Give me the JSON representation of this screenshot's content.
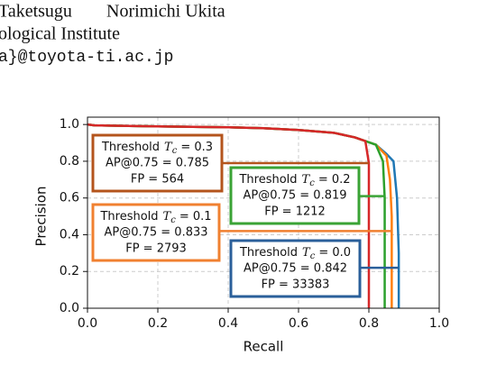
{
  "header": {
    "authors": [
      "Taketsugu",
      "Norimichi Ukita"
    ],
    "affiliation": "ological Institute",
    "email": "a}@toyota-ti.ac.jp"
  },
  "chart_data": {
    "type": "line",
    "xlabel": "Recall",
    "ylabel": "Precision",
    "xlim": [
      0,
      1
    ],
    "ylim": [
      0,
      1.04
    ],
    "xticks": [
      {
        "value": 0,
        "label": "0.0"
      },
      {
        "value": 0.2,
        "label": "0.2"
      },
      {
        "value": 0.4,
        "label": "0.4"
      },
      {
        "value": 0.6,
        "label": "0.6"
      },
      {
        "value": 0.8,
        "label": "0.8"
      },
      {
        "value": 1,
        "label": "1.0"
      }
    ],
    "yticks": [
      {
        "value": 0,
        "label": "0.0"
      },
      {
        "value": 0.2,
        "label": "0.2"
      },
      {
        "value": 0.4,
        "label": "0.4"
      },
      {
        "value": 0.6,
        "label": "0.6"
      },
      {
        "value": 0.8,
        "label": "0.8"
      },
      {
        "value": 1,
        "label": "1.0"
      }
    ],
    "grid": true,
    "series": [
      {
        "color": "#1f77b4",
        "x": [
          0,
          0.02,
          0.2,
          0.4,
          0.5,
          0.6,
          0.7,
          0.76,
          0.79,
          0.82,
          0.85,
          0.87,
          0.88,
          0.885,
          0.885
        ],
        "values": [
          1.0,
          0.995,
          0.99,
          0.985,
          0.98,
          0.97,
          0.955,
          0.93,
          0.91,
          0.89,
          0.84,
          0.8,
          0.6,
          0.3,
          0
        ]
      },
      {
        "color": "#ff7f0e",
        "x": [
          0,
          0.02,
          0.2,
          0.4,
          0.5,
          0.6,
          0.7,
          0.76,
          0.79,
          0.82,
          0.85,
          0.86,
          0.865,
          0.865
        ],
        "values": [
          1.0,
          0.995,
          0.99,
          0.985,
          0.98,
          0.97,
          0.955,
          0.93,
          0.91,
          0.89,
          0.83,
          0.7,
          0.5,
          0
        ]
      },
      {
        "color": "#2ca02c",
        "x": [
          0,
          0.02,
          0.2,
          0.4,
          0.5,
          0.6,
          0.7,
          0.76,
          0.79,
          0.82,
          0.84,
          0.845,
          0.845
        ],
        "values": [
          1.0,
          0.995,
          0.99,
          0.985,
          0.98,
          0.97,
          0.955,
          0.93,
          0.91,
          0.89,
          0.8,
          0.6,
          0
        ]
      },
      {
        "color": "#d62728",
        "x": [
          0,
          0.02,
          0.2,
          0.4,
          0.5,
          0.6,
          0.7,
          0.76,
          0.79,
          0.8,
          0.8
        ],
        "values": [
          1.0,
          0.995,
          0.99,
          0.985,
          0.98,
          0.97,
          0.955,
          0.93,
          0.91,
          0.79,
          0
        ]
      }
    ],
    "annotation_title": "Threshold",
    "symbol": "T",
    "subscript": "c",
    "annotations": [
      {
        "color": "#b4541c",
        "threshold": "= 0.3",
        "ap": "AP@0.75 = 0.785",
        "fp": "FP = 564",
        "point_x": 0.8,
        "point_y": 0.79
      },
      {
        "color": "#3aa335",
        "threshold": "= 0.2",
        "ap": "AP@0.75 = 0.819",
        "fp": "FP = 1212",
        "point_x": 0.845,
        "point_y": 0.61
      },
      {
        "color": "#f08030",
        "threshold": "= 0.1",
        "ap": "AP@0.75 = 0.833",
        "fp": "FP = 2793",
        "point_x": 0.865,
        "point_y": 0.42
      },
      {
        "color": "#2a5f9a",
        "threshold": "= 0.0",
        "ap": "AP@0.75 = 0.842",
        "fp": "FP = 33383",
        "point_x": 0.885,
        "point_y": 0.22
      }
    ]
  }
}
